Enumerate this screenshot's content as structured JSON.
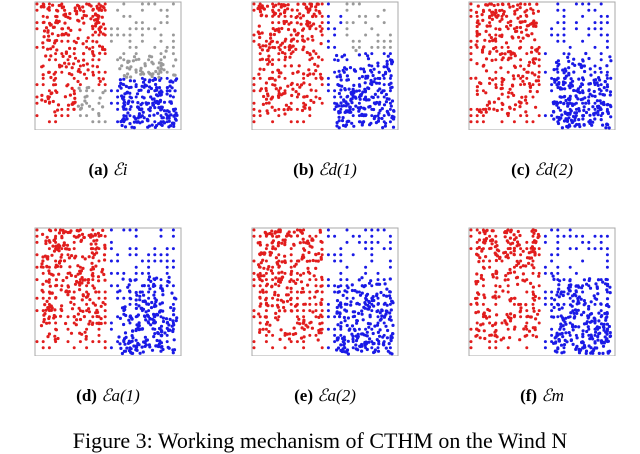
{
  "figure": {
    "colors": {
      "red": "#e11d1d",
      "blue": "#1a1ae6",
      "gray": "#9a9a9a",
      "frame": "#a8a8a8"
    },
    "panels": [
      {
        "label": "(a)",
        "math": "ℰi",
        "unassigned_region": "top-right and lower-left of red side"
      },
      {
        "label": "(b)",
        "math": "ℰd(1)",
        "unassigned_region": "top-right"
      },
      {
        "label": "(c)",
        "math": "ℰd(2)",
        "unassigned_region": "none"
      },
      {
        "label": "(d)",
        "math": "ℰa(1)",
        "unassigned_region": "none"
      },
      {
        "label": "(e)",
        "math": "ℰa(2)",
        "unassigned_region": "none"
      },
      {
        "label": "(f)",
        "math": "ℰm",
        "unassigned_region": "none"
      }
    ],
    "caption_cut": "Figure 3:  Working mechanism of CTHM on the Wind N"
  }
}
